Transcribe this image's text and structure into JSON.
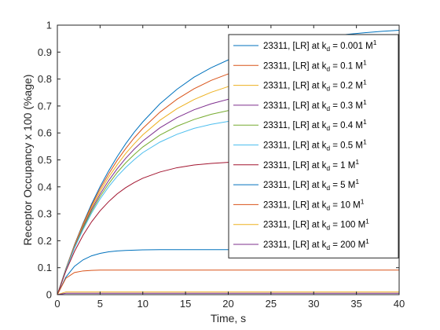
{
  "chart_data": {
    "type": "line",
    "title": "",
    "xlabel": "Time, s",
    "ylabel": "Receptor Occupancy x 100 (%age)",
    "xlim": [
      0,
      40
    ],
    "ylim": [
      0,
      1
    ],
    "xticks": [
      "0",
      "5",
      "10",
      "15",
      "20",
      "25",
      "30",
      "35",
      "40"
    ],
    "yticks": [
      "0",
      "0.1",
      "0.2",
      "0.3",
      "0.4",
      "0.5",
      "0.6",
      "0.7",
      "0.8",
      "0.9",
      "1"
    ],
    "grid": false,
    "legend_position": "top-right",
    "x": [
      0,
      1,
      2,
      3,
      4,
      5,
      6,
      7,
      8,
      9,
      10,
      12,
      14,
      16,
      18,
      20,
      22,
      24,
      26,
      28,
      30,
      32,
      34,
      36,
      38,
      40
    ],
    "series": [
      {
        "name": "23311, [LR] at k_d = 0.001 M^1",
        "label_prefix": "23311, [LR] at k",
        "label_sub": "d",
        "label_value": " = 0.001 M",
        "label_sup": "1",
        "color": "#0072BD",
        "values": [
          0,
          0.097,
          0.185,
          0.264,
          0.336,
          0.401,
          0.459,
          0.512,
          0.56,
          0.603,
          0.641,
          0.708,
          0.762,
          0.807,
          0.842,
          0.871,
          0.894,
          0.913,
          0.928,
          0.941,
          0.951,
          0.959,
          0.966,
          0.972,
          0.977,
          0.981
        ]
      },
      {
        "name": "23311, [LR] at k_d = 0.1 M^1",
        "label_prefix": "23311, [LR] at k",
        "label_sub": "d",
        "label_value": " = 0.1 M",
        "label_sup": "1",
        "color": "#D95319",
        "values": [
          0,
          0.096,
          0.183,
          0.261,
          0.33,
          0.393,
          0.448,
          0.498,
          0.542,
          0.582,
          0.617,
          0.677,
          0.725,
          0.764,
          0.795,
          0.819,
          0.839,
          0.855,
          0.867,
          0.877,
          0.885,
          0.891,
          0.896,
          0.9,
          0.903,
          0.905
        ]
      },
      {
        "name": "23311, [LR] at k_d = 0.2 M^1",
        "label_prefix": "23311, [LR] at k",
        "label_sub": "d",
        "label_value": " = 0.2 M",
        "label_sup": "1",
        "color": "#EDB120",
        "values": [
          0,
          0.095,
          0.18,
          0.256,
          0.323,
          0.383,
          0.436,
          0.482,
          0.524,
          0.56,
          0.593,
          0.647,
          0.69,
          0.724,
          0.751,
          0.772,
          0.788,
          0.801,
          0.811,
          0.819,
          0.825,
          0.83,
          0.834,
          0.837,
          0.839,
          0.841
        ]
      },
      {
        "name": "23311, [LR] at k_d = 0.3 M^1",
        "label_prefix": "23311, [LR] at k",
        "label_sub": "d",
        "label_value": " = 0.3 M",
        "label_sup": "1",
        "color": "#7E2F8E",
        "values": [
          0,
          0.094,
          0.177,
          0.251,
          0.316,
          0.373,
          0.423,
          0.467,
          0.506,
          0.54,
          0.57,
          0.619,
          0.657,
          0.686,
          0.708,
          0.725,
          0.738,
          0.748,
          0.756,
          0.762,
          0.766,
          0.769,
          0.772,
          0.774,
          0.775,
          0.776
        ]
      },
      {
        "name": "23311, [LR] at k_d = 0.4 M^1",
        "label_prefix": "23311, [LR] at k",
        "label_sub": "d",
        "label_value": " = 0.4 M",
        "label_sup": "1",
        "color": "#77AC30",
        "values": [
          0,
          0.093,
          0.174,
          0.246,
          0.309,
          0.364,
          0.411,
          0.453,
          0.489,
          0.52,
          0.548,
          0.592,
          0.625,
          0.65,
          0.669,
          0.683,
          0.693,
          0.701,
          0.706,
          0.711,
          0.714,
          0.716,
          0.718,
          0.719,
          0.72,
          0.721
        ]
      },
      {
        "name": "23311, [LR] at k_d = 0.5 M^1",
        "label_prefix": "23311, [LR] at k",
        "label_sub": "d",
        "label_value": " = 0.5 M",
        "label_sup": "1",
        "color": "#4DBEEE",
        "values": [
          0,
          0.092,
          0.172,
          0.241,
          0.302,
          0.355,
          0.4,
          0.439,
          0.472,
          0.501,
          0.527,
          0.566,
          0.595,
          0.617,
          0.632,
          0.643,
          0.651,
          0.656,
          0.66,
          0.663,
          0.665,
          0.666,
          0.667,
          0.668,
          0.668,
          0.669
        ]
      },
      {
        "name": "23311, [LR] at k_d = 1 M^1",
        "label_prefix": "23311, [LR] at k",
        "label_sub": "d",
        "label_value": " = 1 M",
        "label_sup": "1",
        "color": "#A2142F",
        "values": [
          0,
          0.088,
          0.16,
          0.22,
          0.27,
          0.311,
          0.345,
          0.374,
          0.397,
          0.416,
          0.432,
          0.455,
          0.471,
          0.481,
          0.487,
          0.491,
          0.494,
          0.496,
          0.497,
          0.498,
          0.499,
          0.499,
          0.5,
          0.5,
          0.5,
          0.5
        ]
      },
      {
        "name": "23311, [LR] at k_d = 5 M^1",
        "label_prefix": "23311, [LR] at k",
        "label_sub": "d",
        "label_value": " = 5 M",
        "label_sup": "1",
        "color": "#0072BD",
        "values": [
          0,
          0.065,
          0.105,
          0.129,
          0.144,
          0.153,
          0.159,
          0.162,
          0.164,
          0.165,
          0.166,
          0.167,
          0.167,
          0.167,
          0.167,
          0.167,
          0.167,
          0.167,
          0.167,
          0.167,
          0.167,
          0.167,
          0.167,
          0.167,
          0.167,
          0.167
        ]
      },
      {
        "name": "23311, [LR] at k_d = 10 M^1",
        "label_prefix": "23311, [LR] at k",
        "label_sub": "d",
        "label_value": " = 10 M",
        "label_sup": "1",
        "color": "#D95319",
        "values": [
          0,
          0.061,
          0.082,
          0.088,
          0.09,
          0.091,
          0.091,
          0.091,
          0.091,
          0.091,
          0.091,
          0.091,
          0.091,
          0.091,
          0.091,
          0.091,
          0.091,
          0.091,
          0.091,
          0.091,
          0.091,
          0.091,
          0.091,
          0.091,
          0.091,
          0.091
        ]
      },
      {
        "name": "23311, [LR] at k_d = 100 M^1",
        "label_prefix": "23311, [LR] at k",
        "label_sub": "d",
        "label_value": " = 100 M",
        "label_sup": "1",
        "color": "#EDB120",
        "values": [
          0,
          0.01,
          0.01,
          0.01,
          0.01,
          0.01,
          0.01,
          0.01,
          0.01,
          0.01,
          0.01,
          0.01,
          0.01,
          0.01,
          0.01,
          0.01,
          0.01,
          0.01,
          0.01,
          0.01,
          0.01,
          0.01,
          0.01,
          0.01,
          0.01,
          0.01
        ]
      },
      {
        "name": "23311, [LR] at k_d = 200 M^1",
        "label_prefix": "23311, [LR] at k",
        "label_sub": "d",
        "label_value": " = 200 M",
        "label_sup": "1",
        "color": "#7E2F8E",
        "values": [
          0,
          0.005,
          0.005,
          0.005,
          0.005,
          0.005,
          0.005,
          0.005,
          0.005,
          0.005,
          0.005,
          0.005,
          0.005,
          0.005,
          0.005,
          0.005,
          0.005,
          0.005,
          0.005,
          0.005,
          0.005,
          0.005,
          0.005,
          0.005,
          0.005,
          0.005
        ]
      }
    ]
  }
}
